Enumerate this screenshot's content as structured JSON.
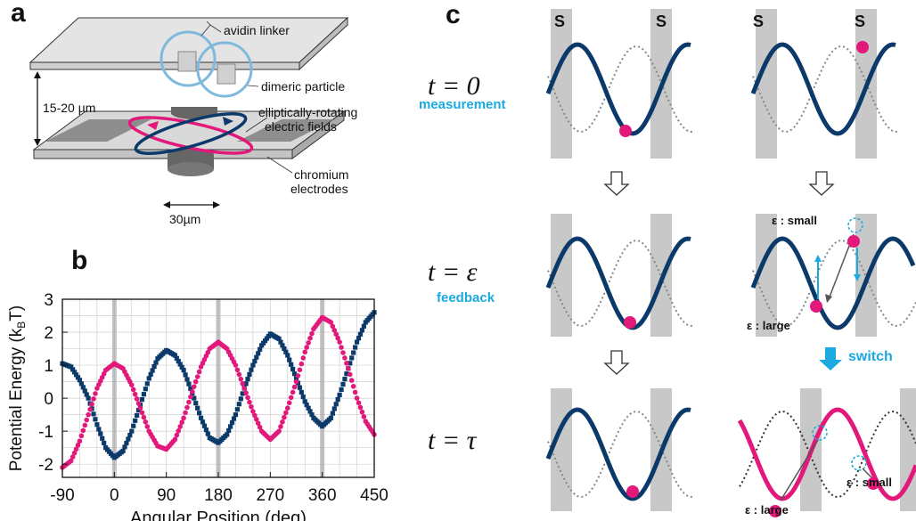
{
  "panel_a": {
    "letter": "a",
    "labels": {
      "avidin_linker": "avidin linker",
      "dimeric_particle": "dimeric particle",
      "gap": "15-20 µm",
      "fields_line1": "elliptically-rotating",
      "fields_line2": "electric fields",
      "electrodes_line1": "chromium",
      "electrodes_line2": "electrodes",
      "scale": "30µm"
    }
  },
  "panel_b": {
    "letter": "b"
  },
  "panel_c": {
    "letter": "c",
    "rows": {
      "t0": "t = 0",
      "t0_caption": "measurement",
      "teps": "t = ε",
      "teps_caption": "feedback",
      "ttau": "t = τ"
    },
    "s_marker": "S",
    "switch_label": "switch",
    "eps_small": "ε : small",
    "eps_large": "ε : large"
  },
  "colors": {
    "navy": "#0b3a6a",
    "magenta": "#e2197a",
    "cyan": "#1aaae0",
    "gray_band": "#c8c8c8"
  },
  "chart_data": {
    "type": "scatter",
    "xlabel": "Angular Position (deg)",
    "ylabel": "Potential Energy (kBT)",
    "xlim": [
      -90,
      450
    ],
    "ylim": [
      -2.4,
      3
    ],
    "xticks": [
      -90,
      0,
      90,
      180,
      270,
      360,
      450
    ],
    "yticks": [
      -2,
      -1,
      0,
      1,
      2,
      3
    ],
    "grid": true,
    "highlight_x": [
      0,
      180,
      360
    ],
    "series": [
      {
        "color": "#0b3a6a",
        "x": [
          -90,
          -75,
          -60,
          -45,
          -30,
          -15,
          0,
          15,
          30,
          45,
          60,
          75,
          90,
          105,
          120,
          135,
          150,
          165,
          180,
          195,
          210,
          225,
          240,
          255,
          270,
          285,
          300,
          315,
          330,
          345,
          360,
          375,
          390,
          405,
          420,
          435,
          450
        ],
        "y": [
          1.05,
          0.95,
          0.55,
          0.0,
          -0.8,
          -1.5,
          -1.8,
          -1.6,
          -1.0,
          -0.2,
          0.6,
          1.2,
          1.45,
          1.3,
          0.85,
          0.15,
          -0.6,
          -1.2,
          -1.35,
          -1.1,
          -0.5,
          0.3,
          1.0,
          1.6,
          1.95,
          1.8,
          1.3,
          0.6,
          -0.1,
          -0.6,
          -0.85,
          -0.6,
          0.1,
          0.9,
          1.7,
          2.3,
          2.6
        ]
      },
      {
        "color": "#e2197a",
        "x": [
          -90,
          -75,
          -60,
          -45,
          -30,
          -15,
          0,
          15,
          30,
          45,
          60,
          75,
          90,
          105,
          120,
          135,
          150,
          165,
          180,
          195,
          210,
          225,
          240,
          255,
          270,
          285,
          300,
          315,
          330,
          345,
          360,
          375,
          390,
          405,
          420,
          435,
          450
        ],
        "y": [
          -2.1,
          -1.9,
          -1.3,
          -0.5,
          0.3,
          0.85,
          1.05,
          0.9,
          0.4,
          -0.3,
          -1.0,
          -1.45,
          -1.55,
          -1.25,
          -0.6,
          0.2,
          0.95,
          1.5,
          1.7,
          1.5,
          1.0,
          0.3,
          -0.4,
          -1.0,
          -1.25,
          -1.0,
          -0.3,
          0.5,
          1.4,
          2.1,
          2.45,
          2.3,
          1.7,
          0.9,
          0.0,
          -0.7,
          -1.1
        ]
      }
    ]
  }
}
